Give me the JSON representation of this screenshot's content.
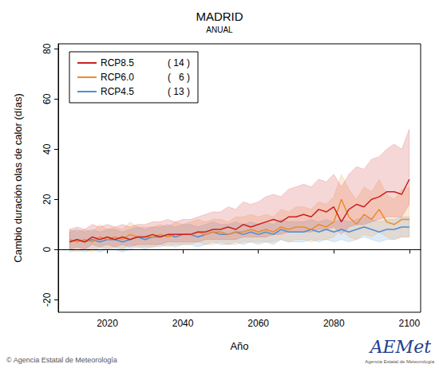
{
  "chart_data": {
    "type": "line",
    "title": "MADRID",
    "subtitle": "ANUAL",
    "x_label": "Año",
    "y_label": "Cambio duración olas de calor (días)",
    "x": [
      2010,
      2012,
      2014,
      2016,
      2018,
      2020,
      2022,
      2024,
      2026,
      2028,
      2030,
      2032,
      2034,
      2036,
      2038,
      2040,
      2042,
      2044,
      2046,
      2048,
      2050,
      2052,
      2054,
      2056,
      2058,
      2060,
      2062,
      2064,
      2066,
      2068,
      2070,
      2072,
      2074,
      2076,
      2078,
      2080,
      2082,
      2084,
      2086,
      2088,
      2090,
      2092,
      2094,
      2096,
      2098,
      2100
    ],
    "xlim": [
      2007,
      2103
    ],
    "xticks": [
      2020,
      2040,
      2060,
      2080,
      2100
    ],
    "ylim": [
      -25,
      82
    ],
    "yticks": [
      -20,
      0,
      20,
      40,
      60,
      80
    ],
    "grid": false,
    "legend": "upper left",
    "hline": 0,
    "series": [
      {
        "name": "RCP8.5",
        "n": 14,
        "n_label": "( 14 )",
        "color": "#cc2020",
        "values": [
          3,
          4,
          3,
          5,
          4,
          5,
          4,
          5,
          4,
          5,
          5,
          6,
          5,
          6,
          6,
          6,
          6,
          7,
          7,
          8,
          8,
          9,
          8,
          10,
          9,
          10,
          11,
          12,
          11,
          13,
          13,
          14,
          13,
          16,
          15,
          17,
          11,
          16,
          18,
          17,
          20,
          21,
          23,
          23,
          22,
          28
        ],
        "lower": [
          0,
          1,
          0,
          2,
          1,
          2,
          1,
          2,
          1,
          2,
          2,
          2,
          2,
          3,
          3,
          3,
          3,
          3,
          4,
          4,
          4,
          4,
          4,
          5,
          5,
          5,
          5,
          6,
          6,
          7,
          7,
          7,
          7,
          8,
          8,
          9,
          6,
          9,
          10,
          10,
          11,
          12,
          13,
          13,
          13,
          18
        ],
        "upper": [
          8,
          9,
          8,
          10,
          9,
          10,
          9,
          10,
          9,
          10,
          10,
          11,
          11,
          12,
          11,
          12,
          12,
          13,
          14,
          15,
          15,
          17,
          16,
          19,
          18,
          19,
          21,
          22,
          21,
          24,
          25,
          26,
          25,
          28,
          27,
          30,
          25,
          30,
          33,
          32,
          36,
          37,
          40,
          42,
          40,
          48
        ]
      },
      {
        "name": "RCP6.0",
        "n": 6,
        "n_label": "(   6 )",
        "color": "#ee8a2a",
        "values": [
          4,
          3,
          4,
          3,
          5,
          4,
          5,
          4,
          6,
          5,
          5,
          5,
          6,
          5,
          6,
          6,
          6,
          7,
          6,
          7,
          7,
          6,
          7,
          7,
          8,
          7,
          8,
          7,
          9,
          8,
          9,
          9,
          8,
          10,
          9,
          11,
          20,
          13,
          10,
          14,
          12,
          16,
          11,
          10,
          12,
          12
        ],
        "lower": [
          0,
          -1,
          0,
          -1,
          1,
          0,
          1,
          0,
          2,
          1,
          1,
          1,
          2,
          1,
          2,
          2,
          2,
          3,
          2,
          2,
          3,
          2,
          2,
          3,
          3,
          3,
          3,
          3,
          4,
          3,
          4,
          4,
          3,
          4,
          4,
          5,
          8,
          5,
          4,
          6,
          5,
          7,
          5,
          4,
          5,
          5
        ],
        "upper": [
          8,
          7,
          8,
          7,
          10,
          8,
          9,
          8,
          11,
          9,
          9,
          9,
          10,
          9,
          11,
          10,
          11,
          12,
          11,
          12,
          12,
          11,
          13,
          13,
          14,
          13,
          14,
          13,
          16,
          15,
          17,
          17,
          16,
          19,
          18,
          21,
          30,
          24,
          20,
          25,
          23,
          28,
          22,
          20,
          24,
          25
        ]
      },
      {
        "name": "RCP4.5",
        "n": 13,
        "n_label": "( 13 )",
        "color": "#4a8fd4",
        "values": [
          3,
          4,
          3,
          4,
          3,
          4,
          4,
          3,
          4,
          5,
          4,
          5,
          5,
          6,
          5,
          6,
          6,
          5,
          6,
          7,
          6,
          6,
          7,
          6,
          7,
          6,
          7,
          6,
          8,
          7,
          7,
          7,
          8,
          7,
          8,
          7,
          8,
          7,
          8,
          9,
          8,
          7,
          8,
          8,
          9,
          9
        ],
        "lower": [
          -1,
          0,
          -1,
          0,
          -1,
          0,
          0,
          -1,
          0,
          1,
          0,
          1,
          1,
          2,
          1,
          2,
          2,
          1,
          2,
          3,
          2,
          2,
          3,
          2,
          3,
          2,
          3,
          2,
          4,
          3,
          3,
          3,
          4,
          3,
          4,
          3,
          4,
          3,
          4,
          5,
          4,
          3,
          4,
          4,
          5,
          5
        ],
        "upper": [
          7,
          8,
          7,
          8,
          7,
          8,
          8,
          7,
          8,
          9,
          8,
          9,
          9,
          10,
          9,
          10,
          10,
          9,
          10,
          11,
          10,
          10,
          11,
          10,
          11,
          10,
          11,
          10,
          12,
          11,
          11,
          11,
          12,
          11,
          12,
          11,
          12,
          11,
          12,
          13,
          12,
          11,
          12,
          12,
          13,
          13
        ]
      }
    ],
    "credit": "© Agencia Estatal de Meteorología",
    "logo": "AEMet",
    "logo_subtitle": "Agencia Estatal de Meteorología"
  }
}
